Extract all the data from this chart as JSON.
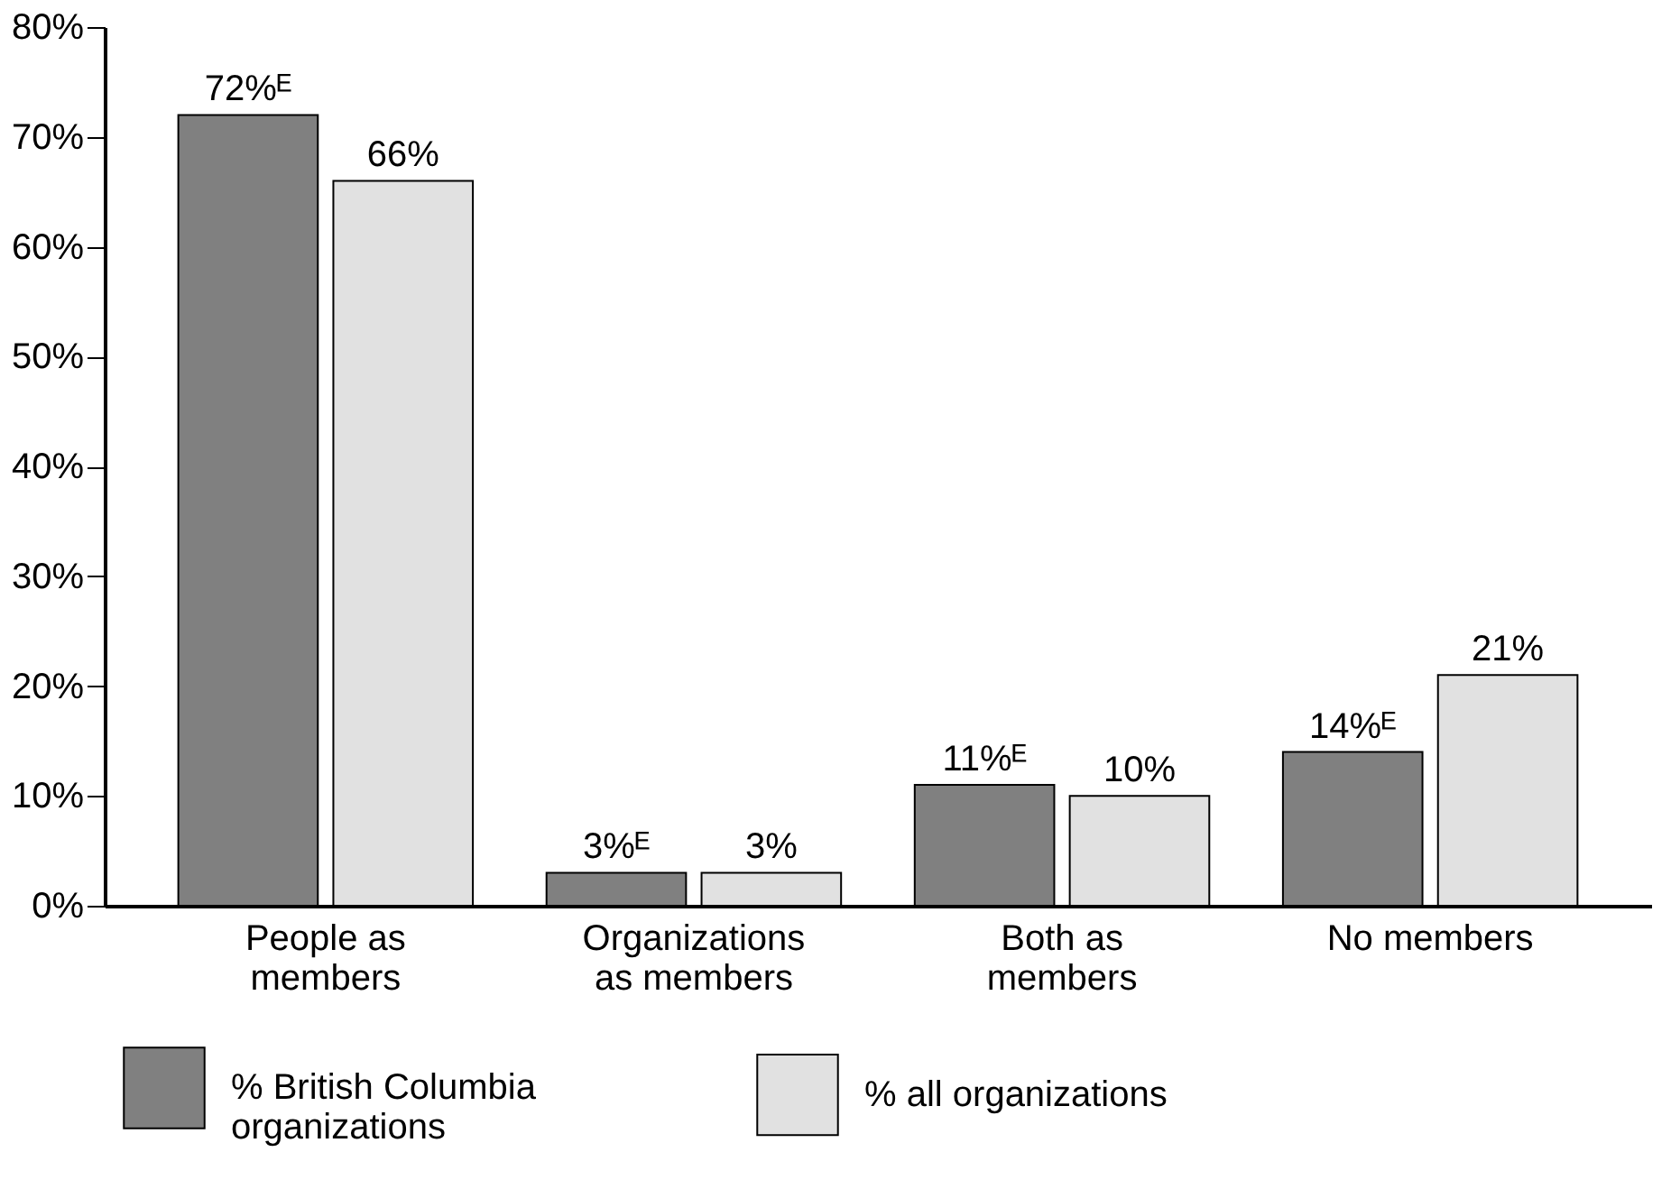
{
  "chart_data": {
    "type": "bar",
    "categories": [
      "People as\nmembers",
      "Organizations\nas members",
      "Both as\nmembers",
      "No members"
    ],
    "series": [
      {
        "name": "% British Columbia\norganizations",
        "color": "#808080",
        "values": [
          72,
          3,
          11,
          14
        ],
        "value_labels": [
          "72%ᴱ",
          "3%ᴱ",
          "11%ᴱ",
          "14%ᴱ"
        ]
      },
      {
        "name": "% all organizations",
        "color": "#e1e1e1",
        "values": [
          66,
          3,
          10,
          21
        ],
        "value_labels": [
          "66%",
          "3%",
          "10%",
          "21%"
        ]
      }
    ],
    "ylim": [
      0,
      80
    ],
    "yticks": [
      {
        "value": 0,
        "label": "0%"
      },
      {
        "value": 10,
        "label": "10%"
      },
      {
        "value": 20,
        "label": "20%"
      },
      {
        "value": 30,
        "label": "30%"
      },
      {
        "value": 40,
        "label": "40%"
      },
      {
        "value": 50,
        "label": "50%"
      },
      {
        "value": 60,
        "label": "60%"
      },
      {
        "value": 70,
        "label": "70%"
      },
      {
        "value": 80,
        "label": "80%"
      }
    ],
    "grid": false,
    "legend": "bottom"
  }
}
